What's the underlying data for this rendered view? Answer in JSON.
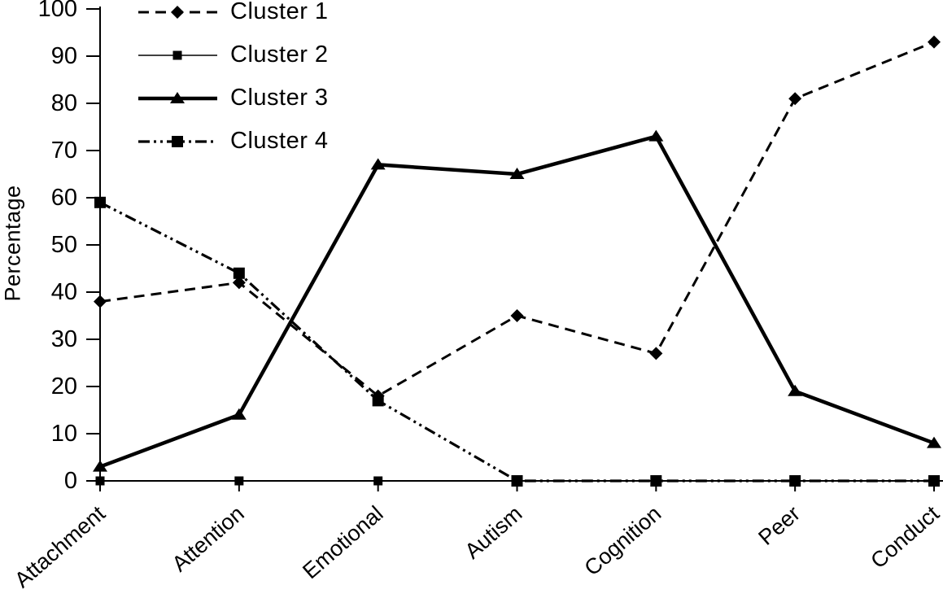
{
  "figure": {
    "background": "#ffffff",
    "ink_color": "#000000"
  },
  "chart_data": {
    "type": "line",
    "title": "",
    "xlabel": "",
    "ylabel": "Percentage",
    "ylim": [
      0,
      100
    ],
    "yticks": [
      0,
      10,
      20,
      30,
      40,
      50,
      60,
      70,
      80,
      90,
      100
    ],
    "grid": false,
    "legend_position": "top-left-inside",
    "categories": [
      "Attachment",
      "Attention",
      "Emotional",
      "Autism",
      "Cognition",
      "Peer",
      "Conduct"
    ],
    "series": [
      {
        "name": "Cluster 1",
        "line": "dashed",
        "marker": "diamond",
        "values": [
          38,
          42,
          18,
          35,
          27,
          81,
          93
        ]
      },
      {
        "name": "Cluster 2",
        "line": "solid-thin",
        "marker": "square",
        "values": [
          0,
          0,
          0,
          0,
          0,
          0,
          0
        ]
      },
      {
        "name": "Cluster 3",
        "line": "solid-thick",
        "marker": "triangle",
        "values": [
          3,
          14,
          67,
          65,
          73,
          19,
          8
        ]
      },
      {
        "name": "Cluster 4",
        "line": "dash-dot-dot",
        "marker": "square",
        "values": [
          59,
          44,
          17,
          0,
          0,
          0,
          0
        ]
      }
    ]
  }
}
